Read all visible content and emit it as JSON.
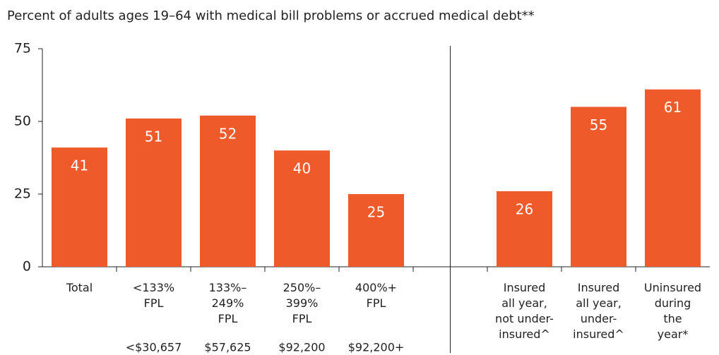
{
  "chart_data": {
    "type": "bar",
    "title": "Percent of adults ages 19–64 with medical bill problems or accrued medical debt**",
    "categories": [
      [
        "Total"
      ],
      [
        "<133%",
        "FPL"
      ],
      [
        "133%–",
        "249%",
        "FPL"
      ],
      [
        "250%–",
        "399%",
        "FPL"
      ],
      [
        "400%+",
        "FPL"
      ],
      null,
      [
        "Insured",
        "all year,",
        "not under-",
        "insured^"
      ],
      [
        "Insured",
        "all year,",
        "under-",
        "insured^"
      ],
      [
        "Uninsured",
        "during",
        "the",
        "year*"
      ]
    ],
    "category_notes": [
      null,
      "<$30,657",
      "$57,625",
      "$92,200",
      "$92,200+",
      null,
      null,
      null,
      null
    ],
    "values": [
      41,
      51,
      52,
      40,
      25,
      null,
      26,
      55,
      61
    ],
    "color": "#ef5a2a",
    "ylim": [
      0,
      75
    ],
    "yticks": [
      0,
      25,
      50,
      75
    ],
    "grid": false
  }
}
